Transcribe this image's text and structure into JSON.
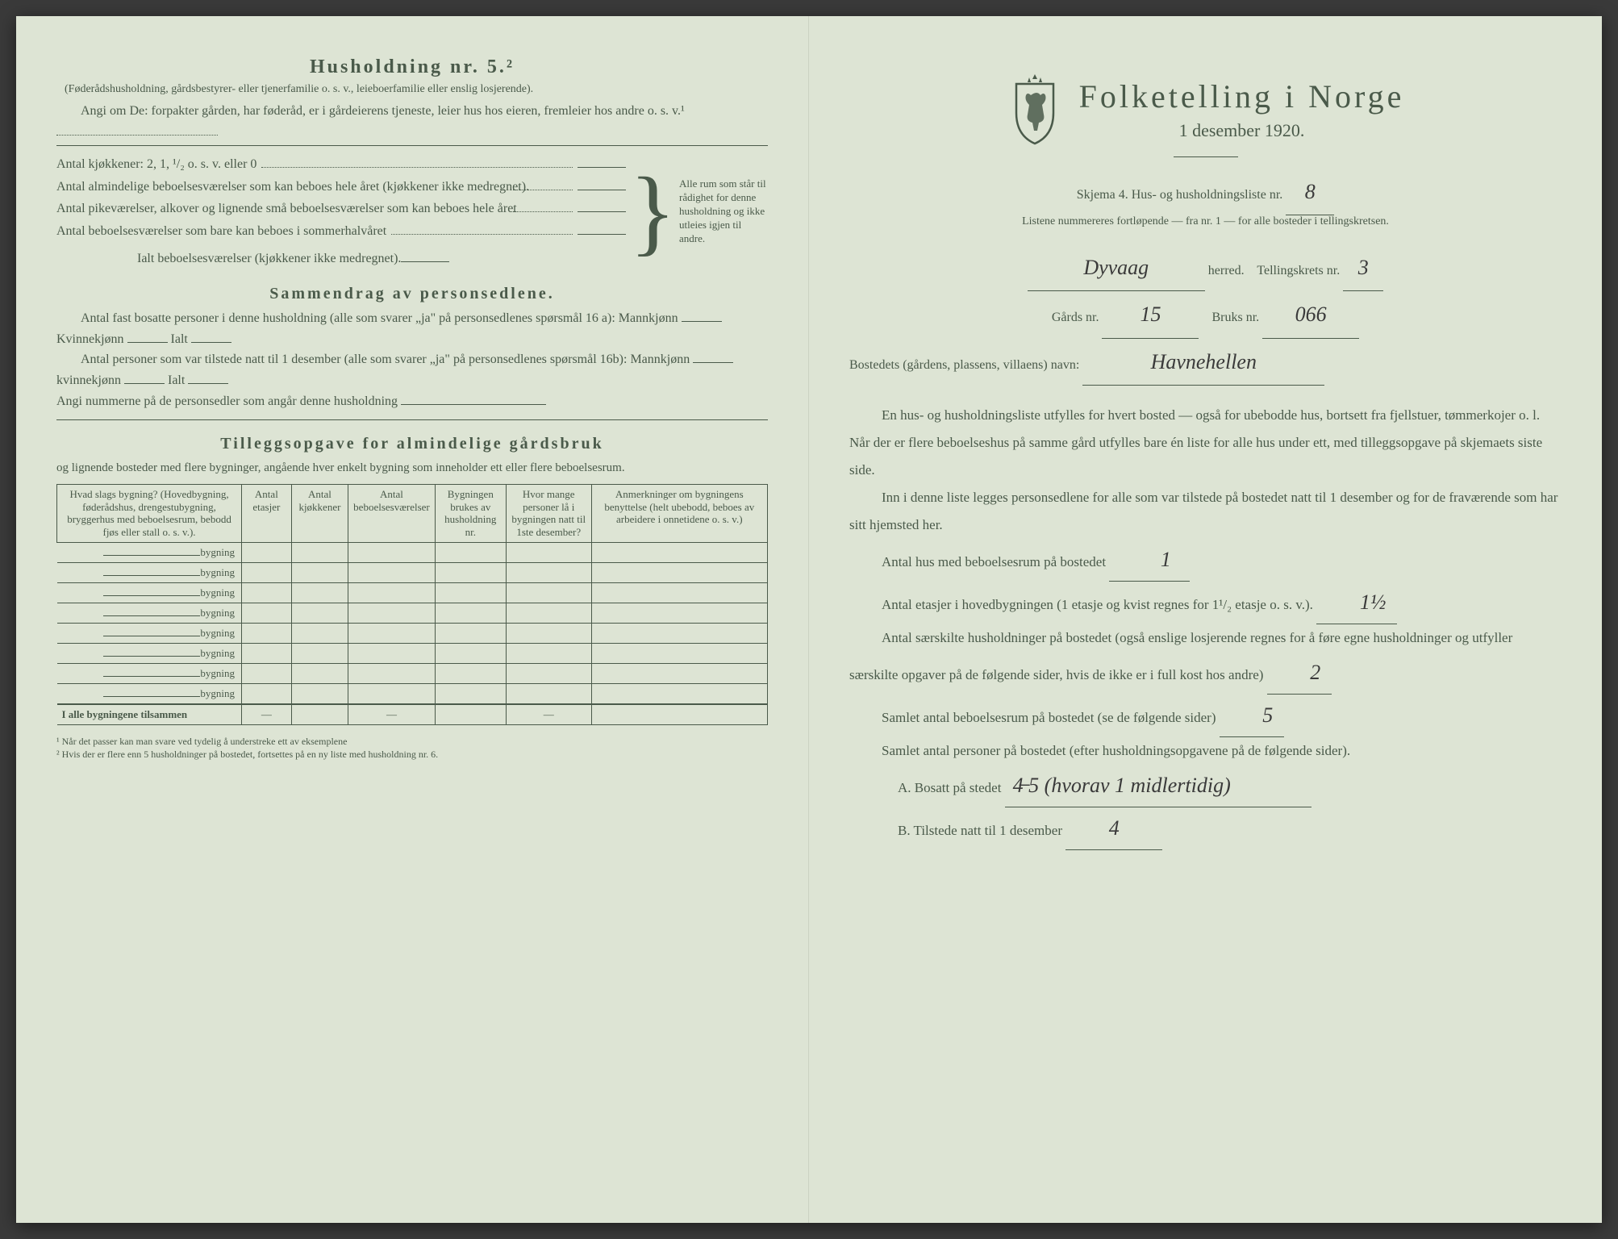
{
  "colors": {
    "paper": "#dde4d4",
    "ink": "#4a5a4a",
    "handwriting": "#3a3a3a",
    "background": "#3a3a3a"
  },
  "left": {
    "title": "Husholdning nr. 5.²",
    "subtitle": "(Føderådshusholdning, gårdsbestyrer- eller tjenerfamilie o. s. v., leieboerfamilie eller enslig losjerende).",
    "angi_intro": "Angi om De: forpakter gården, har føderåd, er i gårdeierens tjeneste, leier hus hos eieren, fremleier hos andre o. s. v.¹",
    "kitchens": "Antal kjøkkener: 2, 1, ¹/₂ o. s. v. eller 0",
    "rooms1": "Antal almindelige beboelsesværelser som kan beboes hele året (kjøkkener ikke medregnet).",
    "rooms2": "Antal pikeværelser, alkover og lignende små beboelsesværelser som kan beboes hele året",
    "rooms3": "Antal beboelsesværelser som bare kan beboes i sommerhalvåret",
    "rooms_total": "Ialt beboelsesværelser (kjøkkener ikke medregnet).",
    "brace_text": "Alle rum som står til rådighet for denne husholdning og ikke utleies igjen til andre.",
    "summary_title": "Sammendrag av personsedlene.",
    "summary1": "Antal fast bosatte personer i denne husholdning (alle som svarer „ja\" på personsedlenes spørsmål 16 a): Mannkjønn",
    "kvinnekjonn": "Kvinnekjønn",
    "ialt": "Ialt",
    "summary2": "Antal personer som var tilstede natt til 1 desember (alle som svarer „ja\" på personsedlenes spørsmål 16b): Mannkjønn",
    "kvinnekjonn2": "kvinnekjønn",
    "angi_nummer": "Angi nummerne på de personsedler som angår denne husholdning",
    "tillegg_title": "Tilleggsopgave for almindelige gårdsbruk",
    "tillegg_sub": "og lignende bosteder med flere bygninger, angående hver enkelt bygning som inneholder ett eller flere beboelsesrum.",
    "table": {
      "headers": [
        "Hvad slags bygning?\n(Hovedbygning, føderådshus, drengestubygning, bryggerhus med beboelsesrum, bebodd fjøs eller stall o. s. v.).",
        "Antal etasjer",
        "Antal kjøkkener",
        "Antal beboelsesværelser",
        "Bygningen brukes av husholdning nr.",
        "Hvor mange personer lå i bygningen natt til 1ste desember?",
        "Anmerkninger om bygningens benyttelse (helt ubebodd, beboes av arbeidere i onnetidene o. s. v.)"
      ],
      "row_label": "bygning",
      "row_count": 8,
      "totals_label": "I alle bygningene tilsammen"
    },
    "footnote1": "¹ Når det passer kan man svare ved tydelig å understreke ett av eksemplene",
    "footnote2": "² Hvis der er flere enn 5 husholdninger på bostedet, fortsettes på en ny liste med husholdning nr. 6."
  },
  "right": {
    "main_title": "Folketelling i Norge",
    "date": "1 desember 1920.",
    "skjema": "Skjema 4.  Hus- og husholdningsliste nr.",
    "skjema_value": "8",
    "listene": "Listene nummereres fortløpende — fra nr. 1 — for alle bosteder i tellingskretsen.",
    "herred_value": "Dyvaag",
    "herred_label": "herred.",
    "tellingskrets_label": "Tellingskrets nr.",
    "tellingskrets_value": "3",
    "gards_label": "Gårds nr.",
    "gards_value": "15",
    "bruks_label": "Bruks nr.",
    "bruks_value": "066",
    "bosted_label": "Bostedets (gårdens, plassens, villaens) navn:",
    "bosted_value": "Havnehellen",
    "para1": "En hus- og husholdningsliste utfylles for hvert bosted — også for ubebodde hus, bortsett fra fjellstuer, tømmerkojer o. l. Når der er flere beboelseshus på samme gård utfylles bare én liste for alle hus under ett, med tilleggsopgave på skjemaets siste side.",
    "para2": "Inn i denne liste legges personsedlene for alle som var tilstede på bostedet natt til 1 desember og for de fraværende som har sitt hjemsted her.",
    "antal_hus": "Antal hus med beboelsesrum på bostedet",
    "antal_hus_value": "1",
    "antal_etasjer": "Antal etasjer i hovedbygningen (1 etasje og kvist regnes for 1¹/₂ etasje o. s. v.).",
    "antal_etasjer_value": "1½",
    "antal_hushold": "Antal særskilte husholdninger på bostedet (også enslige losjerende regnes for å føre egne husholdninger og utfyller særskilte opgaver på de følgende sider, hvis de ikke er i full kost hos andre)",
    "antal_hushold_value": "2",
    "samlet_rum": "Samlet antal beboelsesrum på bostedet (se de følgende sider)",
    "samlet_rum_value": "5",
    "samlet_pers": "Samlet antal personer på bostedet (efter husholdningsopgavene på de følgende sider).",
    "a_label": "A.  Bosatt på stedet",
    "a_value": "4̶ 5 (hvorav 1 midlertidig)",
    "b_label": "B.  Tilstede natt til 1 desember",
    "b_value": "4"
  }
}
